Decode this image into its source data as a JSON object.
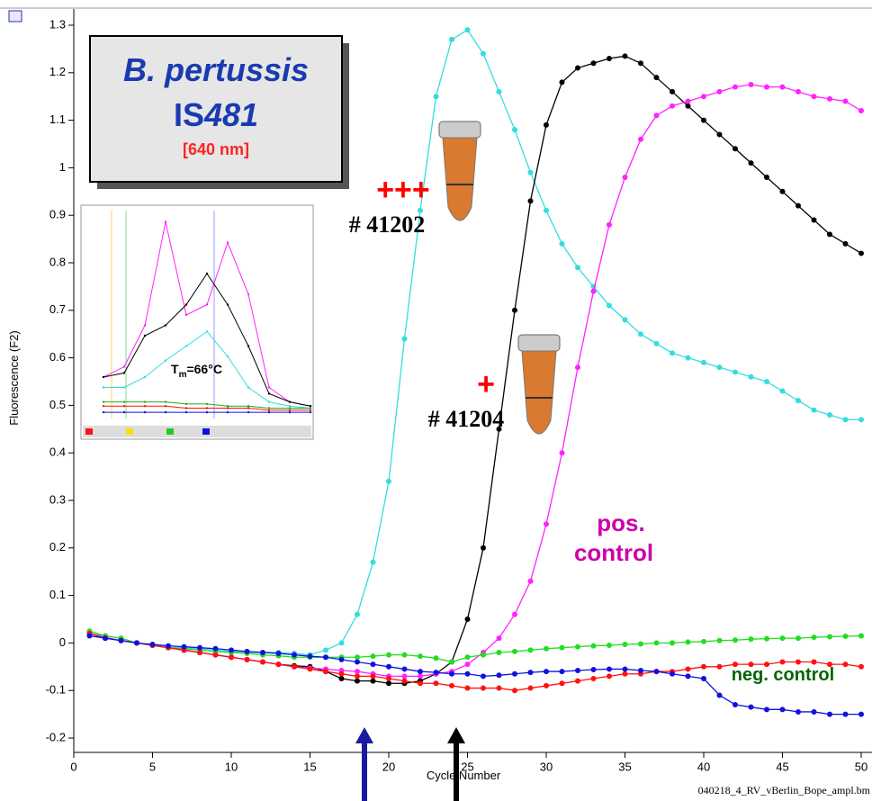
{
  "chart_data": [
    {
      "type": "line",
      "title": "B. pertussis",
      "gene_prefix": "IS",
      "gene_number": "481",
      "wavelength": "[640 nm]",
      "xlabel": "Cycle Number",
      "ylabel": "Fluorescence (F2)",
      "file_name": "040218_4_RV_vBerlin_Bope_ampl.bm",
      "xlim": [
        0,
        50
      ],
      "xticks": [
        0,
        5,
        10,
        15,
        20,
        25,
        30,
        35,
        40,
        45,
        50
      ],
      "ylim": [
        -0.2,
        1.3
      ],
      "yticks": [
        -0.2,
        -0.1,
        0,
        0.1,
        0.2,
        0.3,
        0.4,
        0.5,
        0.6,
        0.7,
        0.8,
        0.9,
        1,
        1.1,
        1.2,
        1.3
      ],
      "x": [
        1,
        2,
        3,
        4,
        5,
        6,
        7,
        8,
        9,
        10,
        11,
        12,
        13,
        14,
        15,
        16,
        17,
        18,
        19,
        20,
        21,
        22,
        23,
        24,
        25,
        26,
        27,
        28,
        29,
        30,
        31,
        32,
        33,
        34,
        35,
        36,
        37,
        38,
        39,
        40,
        41,
        42,
        43,
        44,
        45,
        46,
        47,
        48,
        49,
        50
      ],
      "series": [
        {
          "color": "#33dddd",
          "values": [
            0.02,
            0.015,
            0.01,
            0.0,
            -0.005,
            -0.01,
            -0.01,
            -0.012,
            -0.015,
            -0.018,
            -0.02,
            -0.02,
            -0.02,
            -0.022,
            -0.025,
            -0.015,
            0.0,
            0.06,
            0.17,
            0.34,
            0.64,
            0.91,
            1.15,
            1.27,
            1.29,
            1.24,
            1.16,
            1.08,
            0.99,
            0.91,
            0.84,
            0.79,
            0.75,
            0.71,
            0.68,
            0.65,
            0.63,
            0.61,
            0.6,
            0.59,
            0.58,
            0.57,
            0.56,
            0.55,
            0.53,
            0.51,
            0.49,
            0.48,
            0.47,
            0.47
          ]
        },
        {
          "color": "#000000",
          "values": [
            0.02,
            0.01,
            0.005,
            0.0,
            -0.005,
            -0.01,
            -0.015,
            -0.02,
            -0.025,
            -0.03,
            -0.035,
            -0.04,
            -0.045,
            -0.048,
            -0.05,
            -0.06,
            -0.075,
            -0.08,
            -0.08,
            -0.085,
            -0.085,
            -0.08,
            -0.065,
            -0.04,
            0.05,
            0.2,
            0.45,
            0.7,
            0.93,
            1.09,
            1.18,
            1.21,
            1.22,
            1.23,
            1.235,
            1.22,
            1.19,
            1.16,
            1.13,
            1.1,
            1.07,
            1.04,
            1.01,
            0.98,
            0.95,
            0.92,
            0.89,
            0.86,
            0.84,
            0.82
          ]
        },
        {
          "color": "#ff22ff",
          "values": [
            0.02,
            0.012,
            0.005,
            0.0,
            -0.005,
            -0.01,
            -0.015,
            -0.02,
            -0.025,
            -0.03,
            -0.035,
            -0.04,
            -0.045,
            -0.05,
            -0.053,
            -0.055,
            -0.058,
            -0.06,
            -0.065,
            -0.07,
            -0.07,
            -0.07,
            -0.065,
            -0.06,
            -0.045,
            -0.02,
            0.01,
            0.06,
            0.13,
            0.25,
            0.4,
            0.58,
            0.74,
            0.88,
            0.98,
            1.06,
            1.11,
            1.13,
            1.14,
            1.15,
            1.16,
            1.17,
            1.175,
            1.17,
            1.17,
            1.16,
            1.15,
            1.145,
            1.14,
            1.12
          ]
        },
        {
          "color": "#22dd22",
          "values": [
            0.025,
            0.015,
            0.01,
            0.0,
            -0.005,
            -0.01,
            -0.012,
            -0.015,
            -0.018,
            -0.02,
            -0.022,
            -0.025,
            -0.027,
            -0.03,
            -0.03,
            -0.03,
            -0.03,
            -0.03,
            -0.028,
            -0.025,
            -0.025,
            -0.028,
            -0.032,
            -0.04,
            -0.03,
            -0.025,
            -0.02,
            -0.018,
            -0.015,
            -0.012,
            -0.01,
            -0.008,
            -0.006,
            -0.005,
            -0.003,
            -0.002,
            0.0,
            0.0,
            0.002,
            0.003,
            0.005,
            0.006,
            0.008,
            0.009,
            0.01,
            0.01,
            0.012,
            0.013,
            0.014,
            0.015
          ]
        },
        {
          "color": "#ff1111",
          "values": [
            0.02,
            0.01,
            0.005,
            0.0,
            -0.005,
            -0.01,
            -0.015,
            -0.02,
            -0.025,
            -0.03,
            -0.035,
            -0.04,
            -0.045,
            -0.05,
            -0.055,
            -0.06,
            -0.065,
            -0.07,
            -0.07,
            -0.075,
            -0.08,
            -0.085,
            -0.085,
            -0.09,
            -0.095,
            -0.095,
            -0.095,
            -0.1,
            -0.095,
            -0.09,
            -0.085,
            -0.08,
            -0.075,
            -0.07,
            -0.065,
            -0.065,
            -0.06,
            -0.06,
            -0.055,
            -0.05,
            -0.05,
            -0.045,
            -0.045,
            -0.045,
            -0.04,
            -0.04,
            -0.04,
            -0.045,
            -0.045,
            -0.05
          ]
        },
        {
          "color": "#1111dd",
          "values": [
            0.015,
            0.01,
            0.005,
            0.0,
            -0.003,
            -0.006,
            -0.008,
            -0.01,
            -0.012,
            -0.015,
            -0.018,
            -0.02,
            -0.022,
            -0.025,
            -0.028,
            -0.03,
            -0.035,
            -0.04,
            -0.045,
            -0.05,
            -0.055,
            -0.06,
            -0.062,
            -0.065,
            -0.065,
            -0.07,
            -0.068,
            -0.065,
            -0.062,
            -0.06,
            -0.06,
            -0.058,
            -0.056,
            -0.055,
            -0.055,
            -0.058,
            -0.06,
            -0.065,
            -0.07,
            -0.075,
            -0.11,
            -0.13,
            -0.135,
            -0.14,
            -0.14,
            -0.145,
            -0.145,
            -0.15,
            -0.15,
            -0.15
          ]
        }
      ],
      "annotations": [
        {
          "text": "+++",
          "color": "#ff0000"
        },
        {
          "text": "# 41202",
          "color": "#000000"
        },
        {
          "text": "+",
          "color": "#ff0000"
        },
        {
          "text": "# 41204",
          "color": "#000000"
        },
        {
          "text": "pos.",
          "color": "#cc00aa"
        },
        {
          "text": "control",
          "color": "#cc00aa"
        },
        {
          "text": "neg. control",
          "color": "#006600"
        }
      ]
    },
    {
      "type": "line",
      "tm_prefix": "T",
      "tm_sub": "m",
      "tm_rest": "=66°C",
      "xlim": [
        40,
        90
      ],
      "ylim": [
        0,
        1
      ],
      "x": [
        40,
        45,
        50,
        55,
        60,
        65,
        70,
        75,
        80,
        85,
        90
      ],
      "series": [
        {
          "color": "#ff22ff",
          "values": [
            0.2,
            0.25,
            0.45,
            0.95,
            0.5,
            0.55,
            0.85,
            0.6,
            0.15,
            0.08,
            0.06
          ]
        },
        {
          "color": "#000000",
          "values": [
            0.2,
            0.22,
            0.4,
            0.45,
            0.55,
            0.7,
            0.55,
            0.35,
            0.12,
            0.08,
            0.06
          ]
        },
        {
          "color": "#33dddd",
          "values": [
            0.15,
            0.15,
            0.2,
            0.28,
            0.35,
            0.42,
            0.3,
            0.15,
            0.08,
            0.06,
            0.05
          ]
        },
        {
          "color": "#22aa22",
          "values": [
            0.08,
            0.08,
            0.08,
            0.08,
            0.07,
            0.07,
            0.06,
            0.06,
            0.05,
            0.05,
            0.05
          ]
        },
        {
          "color": "#ff1111",
          "values": [
            0.06,
            0.06,
            0.06,
            0.06,
            0.05,
            0.05,
            0.05,
            0.05,
            0.04,
            0.04,
            0.04
          ]
        },
        {
          "color": "#1111dd",
          "values": [
            0.03,
            0.03,
            0.03,
            0.03,
            0.03,
            0.03,
            0.03,
            0.03,
            0.03,
            0.03,
            0.03
          ]
        }
      ]
    }
  ]
}
